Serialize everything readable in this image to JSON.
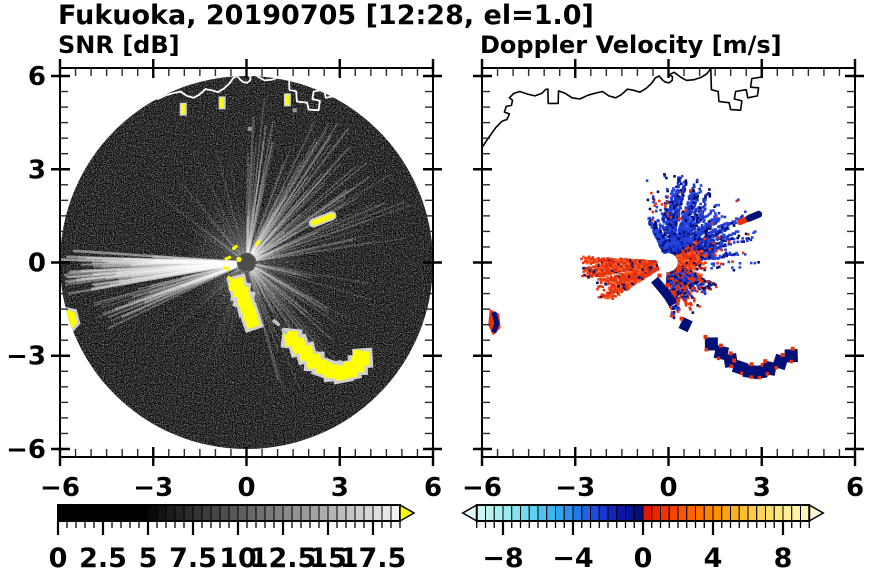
{
  "title": "Fukuoka, 20190705 [12:28, el=1.0]",
  "panels": {
    "snr": {
      "title": "SNR [dB]"
    },
    "velocity": {
      "title": "Doppler Velocity [m/s]"
    }
  },
  "colors": {
    "background": "#ffffff",
    "axis": "#000000",
    "snr_disk": "#000000",
    "snr_clutter": "#ffff00",
    "snr_halo": "#d0d0d0",
    "snr_coast": "#ffffff",
    "vel_coast": "#000000",
    "vel_red": "#e8330f",
    "vel_orange": "#ff5a1e",
    "vel_blue": "#2444e0",
    "vel_navy": "#001078"
  },
  "coastline": [
    [
      -6.0,
      3.7
    ],
    [
      -5.8,
      4.0
    ],
    [
      -5.55,
      4.35
    ],
    [
      -5.35,
      4.55
    ],
    [
      -5.2,
      4.6
    ],
    [
      -5.12,
      4.78
    ],
    [
      -5.28,
      4.84
    ],
    [
      -5.22,
      5.02
    ],
    [
      -5.05,
      5.06
    ],
    [
      -5.02,
      5.22
    ],
    [
      -5.12,
      5.3
    ],
    [
      -4.98,
      5.44
    ],
    [
      -4.78,
      5.5
    ],
    [
      -4.55,
      5.42
    ],
    [
      -4.3,
      5.36
    ],
    [
      -4.08,
      5.44
    ],
    [
      -3.95,
      5.57
    ],
    [
      -3.88,
      5.58
    ],
    [
      -3.87,
      5.12
    ],
    [
      -3.55,
      5.12
    ],
    [
      -3.54,
      5.52
    ],
    [
      -3.32,
      5.44
    ],
    [
      -3.1,
      5.3
    ],
    [
      -2.85,
      5.26
    ],
    [
      -2.6,
      5.38
    ],
    [
      -2.38,
      5.44
    ],
    [
      -2.12,
      5.5
    ],
    [
      -1.92,
      5.36
    ],
    [
      -1.7,
      5.3
    ],
    [
      -1.52,
      5.4
    ],
    [
      -1.32,
      5.58
    ],
    [
      -1.12,
      5.54
    ],
    [
      -0.92,
      5.48
    ],
    [
      -0.72,
      5.6
    ],
    [
      -0.55,
      5.76
    ],
    [
      -0.42,
      5.94
    ],
    [
      -0.3,
      6.0
    ],
    [
      -0.2,
      5.88
    ],
    [
      -0.1,
      5.8
    ],
    [
      0.02,
      5.78
    ],
    [
      0.12,
      5.86
    ],
    [
      0.13,
      5.98
    ],
    [
      0.02,
      6.04
    ],
    [
      0.18,
      6.12
    ],
    [
      0.38,
      5.97
    ],
    [
      0.58,
      5.86
    ],
    [
      0.82,
      5.88
    ],
    [
      1.06,
      5.96
    ],
    [
      1.22,
      6.06
    ],
    [
      1.32,
      6.18
    ],
    [
      1.36,
      6.25
    ],
    [
      1.38,
      5.56
    ],
    [
      1.6,
      5.5
    ],
    [
      1.62,
      5.18
    ],
    [
      1.95,
      5.14
    ],
    [
      2.0,
      4.92
    ],
    [
      2.32,
      4.9
    ],
    [
      2.36,
      5.2
    ],
    [
      2.12,
      5.26
    ],
    [
      2.16,
      5.5
    ],
    [
      2.5,
      5.56
    ],
    [
      2.55,
      5.3
    ],
    [
      2.86,
      5.36
    ],
    [
      2.9,
      5.62
    ],
    [
      2.64,
      5.64
    ],
    [
      2.68,
      5.92
    ],
    [
      2.98,
      5.96
    ],
    [
      3.02,
      6.25
    ]
  ],
  "chart_data": [
    {
      "id": "snr",
      "type": "heatmap",
      "variant": "radar-ppi-scan",
      "title": "SNR [dB]",
      "xlim": [
        -6,
        6
      ],
      "ylim": [
        -6.25,
        6.25
      ],
      "xticks": [
        -6,
        -3,
        0,
        3,
        6
      ],
      "xtick_labels": [
        "−6",
        "−3",
        "0",
        "3",
        "6"
      ],
      "yticks": [
        -6,
        -3,
        0,
        3,
        6
      ],
      "ytick_labels": [
        "−6",
        "−3",
        "0",
        "3",
        "6"
      ],
      "minor_tick_step": 0.5,
      "grid": false,
      "scan_radius": 6,
      "colorbar": {
        "orientation": "horizontal",
        "range": [
          0,
          19
        ],
        "ticks": [
          0,
          2.5,
          5,
          7.5,
          10,
          12.5,
          15,
          17.5
        ],
        "tick_labels": [
          "0",
          "2.5",
          "5",
          "7.5",
          "10",
          "12.5",
          "15",
          "17.5"
        ],
        "cell_step": 0.5,
        "black_below": 5,
        "ramp_to": "#f0f0f0",
        "overflow_arrow_color": "#ffff00"
      },
      "streak_wedges": [
        {
          "a0": 176,
          "a1": 190,
          "rays": 48,
          "rmin": 0.32,
          "rmax": 6.0,
          "bias": 0.25,
          "opacity": 0.5,
          "width": 2.4
        },
        {
          "a0": 193,
          "a1": 206,
          "rays": 26,
          "rmin": 0.32,
          "rmax": 5.2,
          "bias": 0.4,
          "opacity": 0.32,
          "width": 2.0
        },
        {
          "a0": 8,
          "a1": 90,
          "rays": 95,
          "rmin": 0.32,
          "rmax": 5.6,
          "bias": 0.9,
          "opacity": 0.26,
          "width": 1.6
        },
        {
          "a0": -75,
          "a1": -8,
          "rays": 60,
          "rmin": 0.32,
          "rmax": 4.6,
          "bias": 1.0,
          "opacity": 0.2,
          "width": 1.5
        },
        {
          "a0": 92,
          "a1": 150,
          "rays": 30,
          "rmin": 0.32,
          "rmax": 4.2,
          "bias": 1.1,
          "opacity": 0.11,
          "width": 1.4
        },
        {
          "a0": 208,
          "a1": 262,
          "rays": 24,
          "rmin": 0.32,
          "rmax": 3.8,
          "bias": 1.2,
          "opacity": 0.08,
          "width": 1.4
        }
      ],
      "clutter_chains": [
        {
          "size": 13,
          "points": [
            [
              -0.28,
              -0.72
            ],
            [
              -0.18,
              -0.95
            ],
            [
              -0.08,
              -1.18
            ],
            [
              0.0,
              -1.42
            ],
            [
              0.1,
              -1.66
            ],
            [
              0.17,
              -1.88
            ]
          ]
        },
        {
          "size": 14,
          "points": [
            [
              1.45,
              -2.45
            ],
            [
              1.68,
              -2.68
            ],
            [
              1.92,
              -2.92
            ],
            [
              2.18,
              -3.18
            ],
            [
              2.48,
              -3.38
            ],
            [
              2.78,
              -3.5
            ],
            [
              3.08,
              -3.55
            ],
            [
              3.34,
              -3.46
            ],
            [
              3.58,
              -3.3
            ],
            [
              3.74,
              -3.08
            ]
          ]
        }
      ],
      "gray_dashes": [
        [
          0.85,
          -1.85,
          1.06,
          -2.02
        ],
        [
          1.14,
          -2.14,
          1.3,
          -2.3
        ]
      ],
      "center_dashes": [
        [
          -0.45,
          0.42,
          -0.3,
          0.55
        ],
        [
          -0.7,
          0.1,
          -0.5,
          0.18
        ],
        [
          -0.75,
          -0.15,
          -0.55,
          -0.22
        ],
        [
          -0.6,
          -0.45,
          -0.42,
          -0.6
        ],
        [
          -0.3,
          -0.5,
          -0.2,
          -0.65
        ],
        [
          0.3,
          0.55,
          0.42,
          0.7
        ]
      ],
      "edge_blob": [
        [
          -5.95,
          -1.45
        ],
        [
          -5.5,
          -1.55
        ],
        [
          -5.4,
          -1.95
        ],
        [
          -5.7,
          -2.3
        ],
        [
          -5.95,
          -2.15
        ]
      ],
      "ne_dash": [
        2.15,
        1.27,
        2.75,
        1.5
      ],
      "coast_spots": [
        [
          -2.05,
          4.95
        ],
        [
          -0.8,
          5.15
        ],
        [
          1.3,
          5.25
        ]
      ],
      "coast_gray_dots": [
        [
          0.1,
          4.3
        ],
        [
          1.55,
          4.9
        ]
      ]
    },
    {
      "id": "velocity",
      "type": "scatter",
      "variant": "radar-doppler",
      "title": "Doppler Velocity [m/s]",
      "xlim": [
        -6,
        6
      ],
      "ylim": [
        -6.25,
        6.25
      ],
      "xticks": [
        -6,
        -3,
        0,
        3,
        6
      ],
      "xtick_labels": [
        "−6",
        "−3",
        "0",
        "3",
        "6"
      ],
      "yticks": [
        -6,
        -3,
        0,
        3,
        6
      ],
      "minor_tick_step": 0.5,
      "grid": false,
      "colorbar": {
        "orientation": "horizontal",
        "range": [
          -10,
          10
        ],
        "ticks": [
          -8,
          -4,
          0,
          4,
          8
        ],
        "tick_labels": [
          "−8",
          "−4",
          "0",
          "4",
          "8"
        ],
        "cell_step": 0.5,
        "negative_stops": [
          "#e2fbf8",
          "#baf3ef",
          "#8fe9f0",
          "#5fd2f2",
          "#35aff0",
          "#2479e8",
          "#1b3fd8",
          "#0b17a8",
          "#000d72"
        ],
        "positive_stops": [
          "#dd0f00",
          "#f13c00",
          "#ff6600",
          "#ff9300",
          "#ffbe30",
          "#ffdd66",
          "#fff3a6",
          "#fbf7d2"
        ]
      },
      "center_hole_radius": 0.32,
      "sectors": [
        {
          "name": "blue-fan-ne",
          "a0": 5,
          "a1": 95,
          "rays": 120,
          "rmin": 0.35,
          "rmax": 2.9,
          "bias": 0.8,
          "skip": 0.3,
          "colors": [
            "#2444e0",
            "#1b2fc0",
            "#001078"
          ],
          "weights": [
            0.45,
            0.3,
            0.25
          ]
        },
        {
          "name": "blue-top",
          "a0": 95,
          "a1": 118,
          "rays": 28,
          "rmin": 0.35,
          "rmax": 1.6,
          "bias": 0.9,
          "skip": 0.35,
          "colors": [
            "#2444e0",
            "#001078"
          ],
          "weights": [
            0.6,
            0.4
          ]
        },
        {
          "name": "red-inner",
          "a0": -85,
          "a1": 40,
          "rays": 110,
          "rmin": 0.35,
          "rmax": 1.35,
          "bias": 0.9,
          "skip": 0.3,
          "colors": [
            "#e8330f",
            "#ff5a1e",
            "#001078"
          ],
          "weights": [
            0.5,
            0.3,
            0.2
          ]
        },
        {
          "name": "red-wedge-w",
          "a0": 176,
          "a1": 191,
          "rays": 55,
          "rmin": 0.4,
          "rmax": 2.85,
          "bias": 0.4,
          "skip": 0.3,
          "colors": [
            "#e8330f",
            "#ff5a1e",
            "#001078"
          ],
          "weights": [
            0.55,
            0.33,
            0.12
          ]
        },
        {
          "name": "red-wedge-wsw",
          "a0": 194,
          "a1": 213,
          "rays": 38,
          "rmin": 0.4,
          "rmax": 2.6,
          "bias": 0.5,
          "skip": 0.35,
          "colors": [
            "#e8330f",
            "#ff5a1e",
            "#001078"
          ],
          "weights": [
            0.55,
            0.33,
            0.12
          ]
        },
        {
          "name": "mixed-south",
          "a0": -95,
          "a1": -25,
          "rays": 65,
          "rmin": 0.35,
          "rmax": 1.9,
          "bias": 0.9,
          "skip": 0.3,
          "colors": [
            "#e8330f",
            "#001078",
            "#2444e0"
          ],
          "weights": [
            0.4,
            0.35,
            0.25
          ]
        },
        {
          "name": "sparse-specks",
          "a0": -15,
          "a1": 110,
          "rays": 55,
          "rmin": 1.4,
          "rmax": 3.15,
          "bias": 0.9,
          "skip": 0.82,
          "colors": [
            "#2444e0",
            "#001078",
            "#e8330f"
          ],
          "weights": [
            0.5,
            0.3,
            0.2
          ]
        }
      ],
      "navy_band": [
        [
          -0.45,
          -0.55
        ],
        [
          -0.2,
          -0.85
        ],
        [
          0.0,
          -1.1
        ],
        [
          0.15,
          -1.35
        ]
      ],
      "coast_chain": [
        [
          1.38,
          -2.62
        ],
        [
          1.7,
          -2.9
        ],
        [
          2.0,
          -3.15
        ],
        [
          2.3,
          -3.38
        ],
        [
          2.62,
          -3.5
        ],
        [
          2.95,
          -3.52
        ],
        [
          3.25,
          -3.4
        ],
        [
          3.6,
          -3.2
        ],
        [
          3.95,
          -3.0
        ]
      ],
      "small_blob": [
        0.55,
        -2.0
      ],
      "edge_blob": [
        [
          -5.75,
          -1.5
        ],
        [
          -5.45,
          -1.65
        ],
        [
          -5.4,
          -2.1
        ],
        [
          -5.65,
          -2.35
        ],
        [
          -5.8,
          -2.0
        ]
      ],
      "ne_dash": [
        2.3,
        1.3,
        2.9,
        1.55
      ]
    }
  ]
}
